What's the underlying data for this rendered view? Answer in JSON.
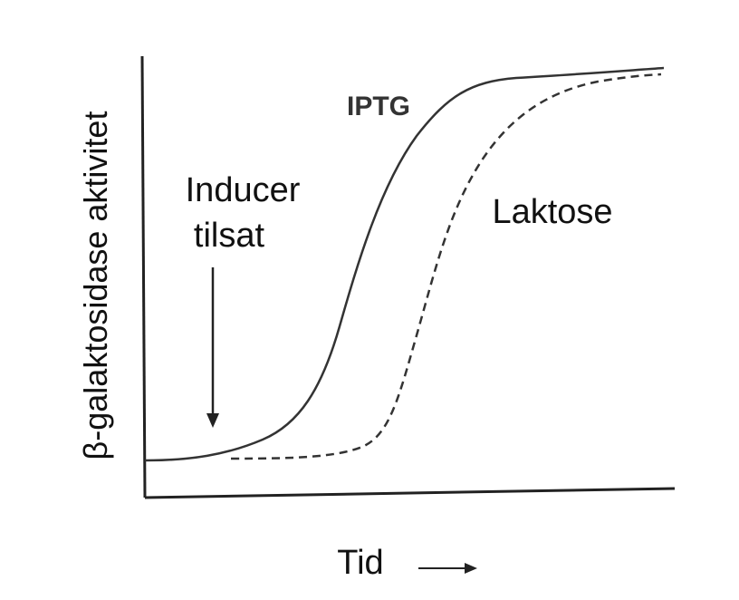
{
  "diagram": {
    "y_axis_label": "β-galaktosidase aktivitet",
    "x_axis_label": "Tid",
    "curves": [
      {
        "label": "IPTG"
      },
      {
        "label": "Laktose"
      }
    ],
    "annotation": {
      "lines": [
        "Inducer",
        "tilsat"
      ]
    }
  }
}
